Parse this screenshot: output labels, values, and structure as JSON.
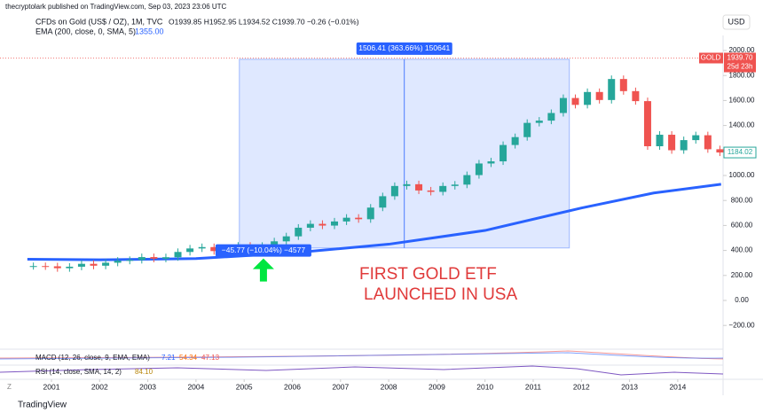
{
  "publisher": "thecryptolark published on TradingView.com, Sep 03, 2023 23:06 UTC",
  "currency": "USD",
  "symbol": "CFDs on Gold (US$ / OZ), 1M, TVC",
  "ohlc_text": "O1939.85 H1952.95 L1934.52 C1939.70 −0.26 (−0.01%)",
  "ema_label": "EMA (200, close, 0, SMA, 5)",
  "ema_value": "1355.00",
  "price_tag": {
    "name": "GOLD",
    "price": "1939.70",
    "countdown": "25d 23h"
  },
  "last_tag": "1184.02",
  "annotation": [
    "FIRST GOLD ETF",
    "LAUNCHED IN USA"
  ],
  "macd_label": "MACD (12, 26, close, 9, EMA, EMA)",
  "macd_values": [
    "7.21",
    "54.34",
    "47.13"
  ],
  "rsi_label": "RSI (14, close, SMA, 14, 2)",
  "rsi_value": "84.10",
  "footer": "TradingView",
  "chart_data": {
    "type": "candlestick",
    "x": [
      2000.625,
      2000.875,
      2001.125,
      2001.375,
      2001.625,
      2001.875,
      2002.125,
      2002.375,
      2002.625,
      2002.875,
      2003.125,
      2003.375,
      2003.625,
      2003.875,
      2004.125,
      2004.375,
      2004.625,
      2004.875,
      2005.125,
      2005.375,
      2005.625,
      2005.875,
      2006.125,
      2006.375,
      2006.625,
      2006.875,
      2007.125,
      2007.375,
      2007.625,
      2007.875,
      2008.125,
      2008.375,
      2008.625,
      2008.875,
      2009.125,
      2009.375,
      2009.625,
      2009.875,
      2010.125,
      2010.375,
      2010.625,
      2010.875,
      2011.125,
      2011.375,
      2011.625,
      2011.875,
      2012.125,
      2012.375,
      2012.625,
      2012.875,
      2013.125,
      2013.375,
      2013.625,
      2013.875,
      2014.125,
      2014.375,
      2014.625,
      2014.875
    ],
    "close": [
      275,
      273,
      258,
      270,
      293,
      278,
      302,
      318,
      324,
      347,
      334,
      346,
      388,
      416,
      427,
      395,
      415,
      438,
      427,
      437,
      473,
      513,
      582,
      613,
      599,
      632,
      662,
      650,
      743,
      834,
      916,
      930,
      880,
      869,
      916,
      927,
      1003,
      1096,
      1113,
      1244,
      1307,
      1421,
      1439,
      1500,
      1620,
      1565,
      1668,
      1604,
      1772,
      1675,
      1595,
      1234,
      1326,
      1202,
      1283,
      1322,
      1210,
      1184
    ],
    "up_color": "#26a69a",
    "down_color": "#ef5350",
    "ema": {
      "name": "EMA",
      "color": "#2962ff",
      "x": [
        2000.5,
        2002,
        2004,
        2006,
        2008,
        2010,
        2012,
        2013.5,
        2014.9
      ],
      "values": [
        330,
        325,
        335,
        380,
        450,
        560,
        740,
        860,
        930
      ]
    },
    "measure": {
      "x": [
        2004.9,
        2011.75
      ],
      "y": [
        420,
        1930
      ],
      "label": "1506.41 (363.66%) 150641"
    },
    "measure_down": {
      "x": 2005.4,
      "y": 350,
      "label": "−45.77 (−10.04%) −4577"
    },
    "ylim": [
      -300,
      2100
    ],
    "yticks": [
      {
        "value": -200,
        "label": "−200.00"
      },
      {
        "value": 0,
        "label": "0.00"
      },
      {
        "value": 200,
        "label": "200.00"
      },
      {
        "value": 400,
        "label": "400.00"
      },
      {
        "value": 600,
        "label": "600.00"
      },
      {
        "value": 800,
        "label": "800.00"
      },
      {
        "value": 1000,
        "label": "1000.00"
      },
      {
        "value": 1200,
        "label": "1200.00"
      },
      {
        "value": 1400,
        "label": "1400.00"
      },
      {
        "value": 1600,
        "label": "1600.00"
      },
      {
        "value": 1800,
        "label": "1800.00"
      },
      {
        "value": 2000,
        "label": "2000.00"
      }
    ],
    "xticks": [
      2001,
      2002,
      2003,
      2004,
      2005,
      2006,
      2007,
      2008,
      2009,
      2010,
      2011,
      2012,
      2013,
      2014
    ]
  }
}
